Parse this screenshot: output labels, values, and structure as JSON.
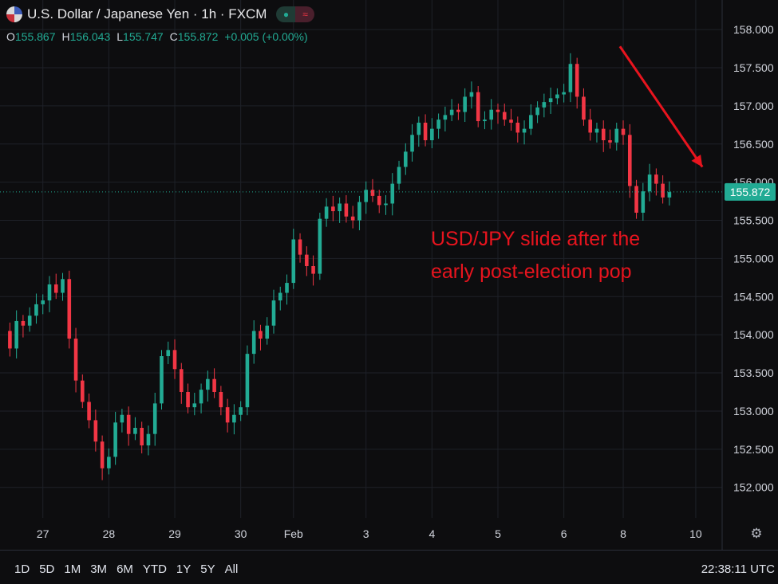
{
  "header": {
    "title": "U.S. Dollar / Japanese Yen · 1h · FXCM",
    "ohlc": [
      {
        "k": "O",
        "v": "155.867"
      },
      {
        "k": "H",
        "v": "156.043"
      },
      {
        "k": "L",
        "v": "155.747"
      },
      {
        "k": "C",
        "v": "155.872"
      },
      {
        "k": "",
        "v": "+0.005 (+0.00%)"
      }
    ]
  },
  "timeframes": [
    "1D",
    "5D",
    "1M",
    "3M",
    "6M",
    "YTD",
    "1Y",
    "5Y",
    "All"
  ],
  "clock": "22:38:11 UTC",
  "colors": {
    "up": "#22ab94",
    "down": "#f23645",
    "grid": "#1e2128",
    "annotation": "#e8141e"
  },
  "chart_data": {
    "type": "candlestick",
    "symbol": "USD/JPY",
    "interval": "1h",
    "x_ticks": [
      {
        "label": "27",
        "index": 6
      },
      {
        "label": "28",
        "index": 16
      },
      {
        "label": "29",
        "index": 26
      },
      {
        "label": "30",
        "index": 36
      },
      {
        "label": "Feb",
        "index": 44
      },
      {
        "label": "3",
        "index": 55
      },
      {
        "label": "4",
        "index": 65
      },
      {
        "label": "5",
        "index": 75
      },
      {
        "label": "6",
        "index": 85
      },
      {
        "label": "8",
        "index": 94
      },
      {
        "label": "10",
        "index": 105
      }
    ],
    "x_range": [
      -0.5,
      109
    ],
    "ylim": [
      151.6,
      158.2
    ],
    "y_ticks": [
      "152.000",
      "152.500",
      "153.000",
      "153.500",
      "154.000",
      "154.500",
      "155.000",
      "155.500",
      "156.000",
      "156.500",
      "157.000",
      "157.500",
      "158.000"
    ],
    "last_price": "155.872",
    "annotation": [
      "USD/JPY slide after the",
      "early post-election pop"
    ],
    "closes": [
      154.05,
      153.82,
      154.18,
      154.12,
      154.25,
      154.4,
      154.45,
      154.66,
      154.55,
      154.73,
      153.95,
      153.4,
      153.12,
      152.88,
      152.6,
      152.25,
      152.4,
      152.85,
      152.95,
      152.7,
      152.78,
      152.55,
      152.7,
      153.1,
      153.72,
      153.8,
      153.55,
      153.25,
      153.05,
      153.1,
      153.28,
      153.42,
      153.25,
      153.05,
      152.85,
      152.95,
      153.05,
      153.75,
      154.05,
      153.95,
      154.12,
      154.45,
      154.55,
      154.68,
      155.25,
      155.05,
      154.9,
      154.8,
      155.52,
      155.68,
      155.62,
      155.72,
      155.55,
      155.5,
      155.74,
      155.9,
      155.82,
      155.7,
      155.72,
      155.98,
      156.2,
      156.4,
      156.62,
      156.78,
      156.55,
      156.7,
      156.82,
      156.88,
      156.95,
      156.92,
      157.12,
      157.18,
      156.8,
      156.82,
      156.95,
      156.92,
      156.82,
      156.78,
      156.65,
      156.7,
      156.88,
      156.98,
      157.05,
      157.1,
      157.15,
      157.18,
      157.55,
      157.12,
      156.82,
      156.65,
      156.7,
      156.55,
      156.52,
      156.7,
      156.62,
      155.95,
      155.6,
      155.88,
      156.1,
      155.98,
      155.8,
      155.87
    ],
    "arrow_from_index": 93.5,
    "arrow_from_price": 157.78,
    "arrow_to_index": 106,
    "arrow_to_price": 156.2
  }
}
